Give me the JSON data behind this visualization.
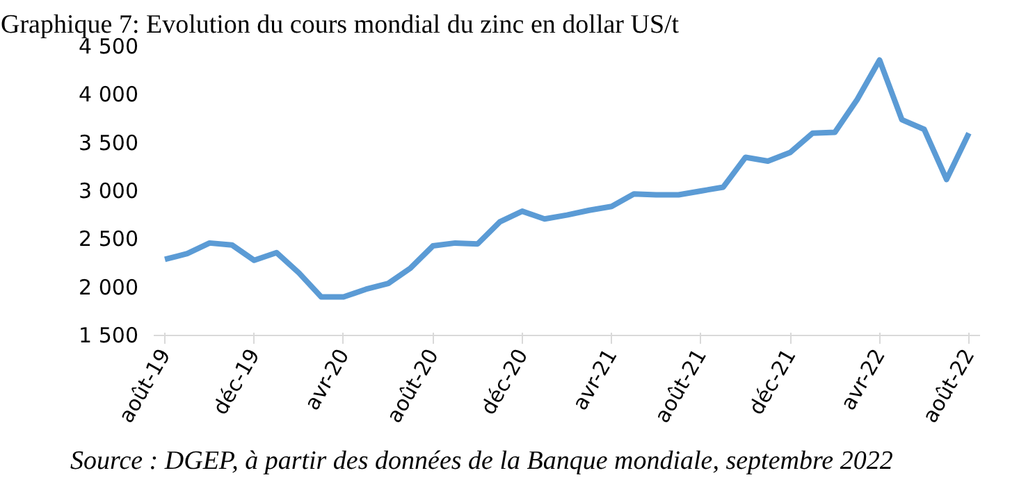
{
  "chart_data": {
    "type": "line",
    "title": "Graphique 7: Evolution du cours mondial du zinc en dollar US/t",
    "categories": [
      "août-19",
      null,
      null,
      null,
      "déc-19",
      null,
      null,
      null,
      "avr-20",
      null,
      null,
      null,
      "août-20",
      null,
      null,
      null,
      "déc-20",
      null,
      null,
      null,
      "avr-21",
      null,
      null,
      null,
      "août-21",
      null,
      null,
      null,
      "déc-21",
      null,
      null,
      null,
      "avr-22",
      null,
      null,
      null,
      "août-22"
    ],
    "series": [
      {
        "color": "#5b9bd5",
        "values": [
          2290,
          2350,
          2460,
          2440,
          2280,
          2360,
          2150,
          1900,
          1900,
          1980,
          2040,
          2200,
          2430,
          2460,
          2450,
          2680,
          2790,
          2710,
          2750,
          2800,
          2840,
          2970,
          2960,
          2960,
          3000,
          3040,
          3350,
          3310,
          3400,
          3600,
          3610,
          3950,
          4360,
          3740,
          3640,
          3120,
          3600
        ]
      }
    ],
    "ylim": [
      1500,
      4500
    ],
    "yticks": [
      {
        "value": 1500,
        "label": "1 500"
      },
      {
        "value": 2000,
        "label": "2 000"
      },
      {
        "value": 2500,
        "label": "2 500"
      },
      {
        "value": 3000,
        "label": "3 000"
      },
      {
        "value": 3500,
        "label": "3 500"
      },
      {
        "value": 4000,
        "label": "4 000"
      },
      {
        "value": 4500,
        "label": "4 500"
      }
    ],
    "marker": "none",
    "line_style": "solid",
    "annotations": [
      "Source : DGEP, à partir des données de la Banque mondiale, septembre 2022"
    ]
  }
}
